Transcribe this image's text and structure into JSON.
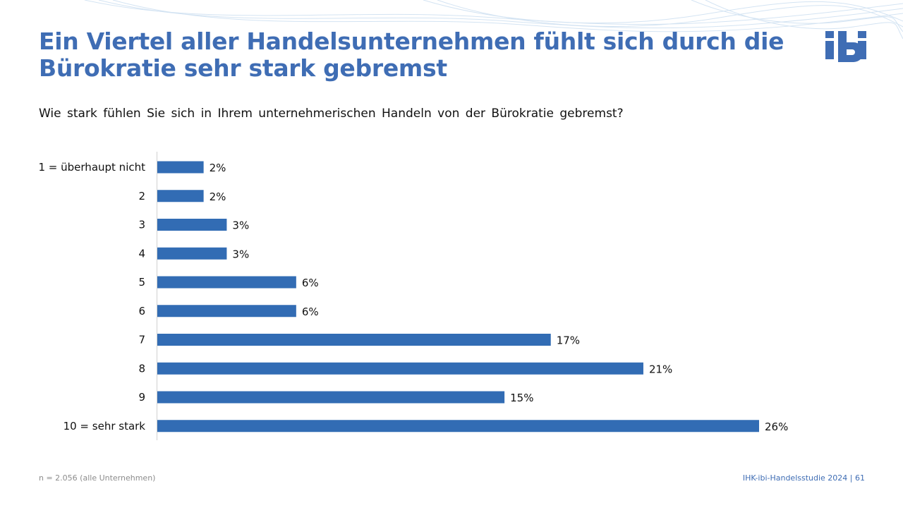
{
  "slide": {
    "title": "Ein Viertel aller Handelsunternehmen fühlt sich durch die Bürokratie sehr stark gebremst",
    "question": "Wie stark fühlen Sie sich in Ihrem unternehmerischen Handeln von der Bürokratie gebremst?",
    "footnote": "n = 2.056 (alle Unternehmen)",
    "source": "IHK-ibi-Handelsstudie 2024 | 61",
    "logo_text": "ibi"
  },
  "colors": {
    "accent": "#3F6DB4",
    "bar": "#326CB4",
    "wave": "#C9DDF0"
  },
  "chart_data": {
    "type": "bar",
    "orientation": "horizontal",
    "categories": [
      "1 = überhaupt nicht",
      "2",
      "3",
      "4",
      "5",
      "6",
      "7",
      "8",
      "9",
      "10 = sehr stark"
    ],
    "values": [
      2,
      2,
      3,
      3,
      6,
      6,
      17,
      21,
      15,
      26
    ],
    "value_labels": [
      "2%",
      "2%",
      "3%",
      "3%",
      "6%",
      "6%",
      "17%",
      "21%",
      "15%",
      "26%"
    ],
    "unit": "%",
    "xlim": [
      0,
      26
    ],
    "grid": false
  }
}
